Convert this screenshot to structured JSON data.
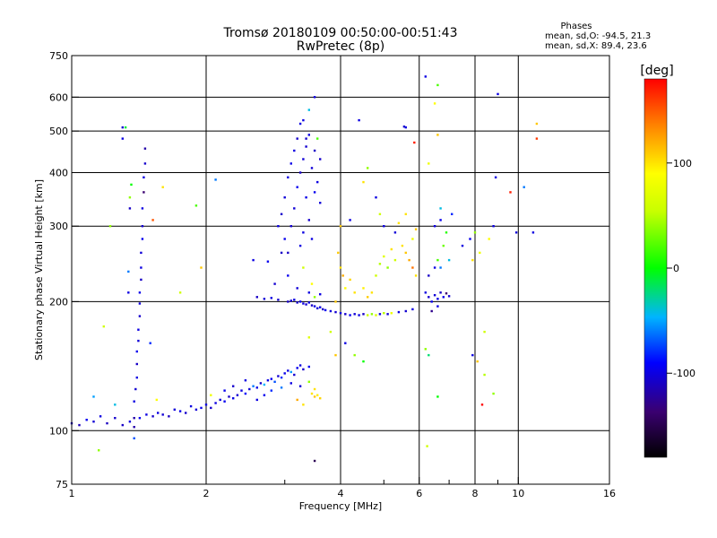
{
  "chart_data": {
    "type": "scatter",
    "title": "Tromsø 20180109 00:50:00-00:51:43",
    "subtitle": "RwPretec (8p)",
    "xlabel": "Frequency [MHz]",
    "ylabel": "Stationary phase Virtual Height [km]",
    "x_scale": "log",
    "y_scale": "log",
    "xlim": [
      1,
      16
    ],
    "ylim": [
      75,
      750
    ],
    "x_ticks": [
      1,
      2,
      4,
      6,
      8,
      10,
      16
    ],
    "x_tick_labels": [
      "1",
      "2",
      "4",
      "6",
      "8",
      "10",
      "16"
    ],
    "x_minor_ticks": [
      3,
      5,
      7,
      9
    ],
    "y_ticks": [
      75,
      100,
      200,
      300,
      400,
      500,
      600,
      750
    ],
    "y_tick_labels": [
      "75",
      "100",
      "200",
      "300",
      "400",
      "500",
      "600",
      "750"
    ],
    "grid": true,
    "info": {
      "heading": "Phases",
      "line1": "mean, sd,O: -94.5, 21.3",
      "line2": "mean, sd,X:  89.4, 23.6"
    },
    "colorbar": {
      "label": "[deg]",
      "range": [
        -180,
        180
      ],
      "ticks": [
        100,
        0,
        -100
      ],
      "tick_labels": [
        "100",
        "0",
        "-100"
      ]
    },
    "points": [
      [
        1.0,
        104,
        -110
      ],
      [
        1.04,
        103,
        -115
      ],
      [
        1.08,
        106,
        -95
      ],
      [
        1.12,
        105,
        -105
      ],
      [
        1.16,
        108,
        -100
      ],
      [
        1.2,
        104,
        -112
      ],
      [
        1.25,
        107,
        -108
      ],
      [
        1.3,
        103,
        -110
      ],
      [
        1.35,
        105,
        -102
      ],
      [
        1.38,
        102,
        -120
      ],
      [
        1.42,
        107,
        -95
      ],
      [
        1.47,
        109,
        -100
      ],
      [
        1.52,
        108,
        -108
      ],
      [
        1.56,
        110,
        -100
      ],
      [
        1.6,
        109,
        -105
      ],
      [
        1.65,
        108,
        -112
      ],
      [
        1.7,
        112,
        -103
      ],
      [
        1.75,
        111,
        -98
      ],
      [
        1.8,
        110,
        -108
      ],
      [
        1.85,
        114,
        -100
      ],
      [
        1.9,
        112,
        -104
      ],
      [
        1.95,
        113,
        -96
      ],
      [
        2.0,
        115,
        -100
      ],
      [
        2.05,
        113,
        -108
      ],
      [
        2.1,
        116,
        -100
      ],
      [
        2.15,
        118,
        -102
      ],
      [
        2.2,
        117,
        -95
      ],
      [
        2.25,
        120,
        -110
      ],
      [
        2.3,
        119,
        -98
      ],
      [
        2.35,
        121,
        -106
      ],
      [
        2.4,
        124,
        -100
      ],
      [
        2.45,
        122,
        -92
      ],
      [
        2.5,
        125,
        -104
      ],
      [
        2.55,
        127,
        -60
      ],
      [
        2.6,
        126,
        -98
      ],
      [
        2.65,
        129,
        -108
      ],
      [
        2.7,
        128,
        -45
      ],
      [
        2.75,
        131,
        -100
      ],
      [
        2.8,
        132,
        -94
      ],
      [
        2.85,
        130,
        -70
      ],
      [
        2.9,
        134,
        -105
      ],
      [
        2.95,
        133,
        -80
      ],
      [
        3.0,
        136,
        -98
      ],
      [
        3.05,
        138,
        -100
      ],
      [
        3.1,
        137,
        -50
      ],
      [
        3.15,
        135,
        -106
      ],
      [
        3.2,
        140,
        -96
      ],
      [
        3.25,
        142,
        -100
      ],
      [
        3.3,
        139,
        -108
      ],
      [
        3.4,
        141,
        -94
      ],
      [
        2.6,
        118,
        -100
      ],
      [
        2.7,
        121,
        -96
      ],
      [
        2.8,
        124,
        -80
      ],
      [
        2.95,
        126,
        -60
      ],
      [
        3.1,
        129,
        -100
      ],
      [
        3.25,
        127,
        -104
      ],
      [
        2.45,
        131,
        -100
      ],
      [
        2.3,
        127,
        -108
      ],
      [
        2.2,
        124,
        -96
      ],
      [
        2.05,
        121,
        80
      ],
      [
        3.45,
        122,
        100
      ],
      [
        3.5,
        120,
        110
      ],
      [
        3.55,
        121,
        95
      ],
      [
        3.6,
        119,
        105
      ],
      [
        3.5,
        125,
        100
      ],
      [
        3.4,
        130,
        40
      ],
      [
        3.3,
        115,
        100
      ],
      [
        3.2,
        118,
        120
      ],
      [
        1.38,
        107,
        -120
      ],
      [
        1.38,
        117,
        -100
      ],
      [
        1.39,
        125,
        -106
      ],
      [
        1.4,
        133,
        -100
      ],
      [
        1.4,
        143,
        -110
      ],
      [
        1.4,
        153,
        -96
      ],
      [
        1.41,
        162,
        -104
      ],
      [
        1.41,
        172,
        -100
      ],
      [
        1.42,
        185,
        -108
      ],
      [
        1.42,
        198,
        -102
      ],
      [
        1.42,
        210,
        -98
      ],
      [
        1.43,
        225,
        -110
      ],
      [
        1.43,
        240,
        -100
      ],
      [
        1.43,
        260,
        -104
      ],
      [
        1.44,
        280,
        -96
      ],
      [
        1.44,
        300,
        -106
      ],
      [
        1.44,
        330,
        -100
      ],
      [
        1.45,
        360,
        -140
      ],
      [
        1.45,
        390,
        -100
      ],
      [
        1.46,
        420,
        -108
      ],
      [
        1.46,
        455,
        -120
      ],
      [
        1.3,
        480,
        -100
      ],
      [
        1.3,
        510,
        -105
      ],
      [
        1.32,
        510,
        -10
      ],
      [
        1.35,
        330,
        -110
      ],
      [
        1.35,
        350,
        40
      ],
      [
        1.36,
        375,
        0
      ],
      [
        1.34,
        235,
        -60
      ],
      [
        1.34,
        210,
        -100
      ],
      [
        1.38,
        96,
        -70
      ],
      [
        1.5,
        160,
        -80
      ],
      [
        1.55,
        118,
        90
      ],
      [
        1.52,
        310,
        150
      ],
      [
        1.12,
        120,
        -50
      ],
      [
        1.18,
        175,
        60
      ],
      [
        1.22,
        300,
        40
      ],
      [
        1.25,
        115,
        -40
      ],
      [
        1.15,
        90,
        40
      ],
      [
        1.6,
        370,
        100
      ],
      [
        1.75,
        210,
        60
      ],
      [
        3.05,
        200,
        -110
      ],
      [
        3.1,
        201,
        -104
      ],
      [
        3.15,
        202,
        -100
      ],
      [
        3.2,
        199,
        -108
      ],
      [
        3.25,
        200,
        -96
      ],
      [
        3.3,
        198,
        -102
      ],
      [
        3.35,
        197,
        -106
      ],
      [
        3.4,
        199,
        -100
      ],
      [
        3.45,
        196,
        -110
      ],
      [
        3.5,
        195,
        -98
      ],
      [
        3.55,
        193,
        -104
      ],
      [
        3.6,
        194,
        -100
      ],
      [
        3.65,
        192,
        -108
      ],
      [
        3.7,
        191,
        -96
      ],
      [
        3.8,
        190,
        -102
      ],
      [
        3.9,
        189,
        -106
      ],
      [
        4.0,
        188,
        -100
      ],
      [
        4.1,
        187,
        -108
      ],
      [
        4.2,
        186,
        -96
      ],
      [
        4.3,
        187,
        -104
      ],
      [
        4.4,
        186,
        -100
      ],
      [
        4.5,
        187,
        -110
      ],
      [
        4.6,
        186,
        60
      ],
      [
        4.7,
        187,
        40
      ],
      [
        4.8,
        186,
        70
      ],
      [
        4.9,
        187,
        -100
      ],
      [
        5.0,
        188,
        50
      ],
      [
        5.1,
        187,
        -104
      ],
      [
        5.2,
        188,
        80
      ],
      [
        5.4,
        189,
        -100
      ],
      [
        5.6,
        190,
        -106
      ],
      [
        5.8,
        192,
        -100
      ],
      [
        2.6,
        205,
        -110
      ],
      [
        2.7,
        203,
        -104
      ],
      [
        2.8,
        204,
        -100
      ],
      [
        2.9,
        202,
        -108
      ],
      [
        2.55,
        250,
        -100
      ],
      [
        2.75,
        248,
        -96
      ],
      [
        2.85,
        220,
        -106
      ],
      [
        2.9,
        300,
        -100
      ],
      [
        2.95,
        320,
        -108
      ],
      [
        3.0,
        280,
        -96
      ],
      [
        3.0,
        350,
        -104
      ],
      [
        3.05,
        390,
        -100
      ],
      [
        3.05,
        260,
        -110
      ],
      [
        3.1,
        420,
        -98
      ],
      [
        3.1,
        300,
        -106
      ],
      [
        3.15,
        450,
        -100
      ],
      [
        3.15,
        330,
        -104
      ],
      [
        3.2,
        480,
        -108
      ],
      [
        3.2,
        370,
        -96
      ],
      [
        3.25,
        270,
        -100
      ],
      [
        3.25,
        400,
        -110
      ],
      [
        3.3,
        430,
        -104
      ],
      [
        3.3,
        290,
        -100
      ],
      [
        3.35,
        460,
        -106
      ],
      [
        3.35,
        350,
        -98
      ],
      [
        3.4,
        490,
        -100
      ],
      [
        3.4,
        310,
        -108
      ],
      [
        3.45,
        410,
        -104
      ],
      [
        3.45,
        280,
        -100
      ],
      [
        3.5,
        450,
        -110
      ],
      [
        3.5,
        360,
        -96
      ],
      [
        3.55,
        480,
        20
      ],
      [
        3.55,
        380,
        -100
      ],
      [
        3.6,
        340,
        -104
      ],
      [
        3.6,
        430,
        -108
      ],
      [
        3.5,
        600,
        -100
      ],
      [
        3.4,
        560,
        -40
      ],
      [
        3.3,
        530,
        -100
      ],
      [
        2.95,
        260,
        -110
      ],
      [
        3.05,
        230,
        -96
      ],
      [
        3.2,
        215,
        -104
      ],
      [
        3.4,
        210,
        -100
      ],
      [
        3.5,
        205,
        40
      ],
      [
        3.6,
        208,
        -100
      ],
      [
        3.3,
        240,
        60
      ],
      [
        3.45,
        220,
        90
      ],
      [
        3.35,
        480,
        -108
      ],
      [
        3.25,
        520,
        -100
      ],
      [
        3.95,
        260,
        110
      ],
      [
        4.0,
        240,
        100
      ],
      [
        4.05,
        230,
        120
      ],
      [
        4.1,
        215,
        90
      ],
      [
        4.2,
        225,
        105
      ],
      [
        4.3,
        210,
        100
      ],
      [
        3.9,
        200,
        110
      ],
      [
        4.5,
        215,
        95
      ],
      [
        4.6,
        205,
        108
      ],
      [
        4.7,
        210,
        100
      ],
      [
        4.8,
        230,
        60
      ],
      [
        4.9,
        245,
        50
      ],
      [
        5.0,
        255,
        70
      ],
      [
        5.1,
        240,
        40
      ],
      [
        5.2,
        265,
        100
      ],
      [
        5.3,
        250,
        60
      ],
      [
        5.5,
        270,
        100
      ],
      [
        5.6,
        260,
        110
      ],
      [
        5.7,
        250,
        120
      ],
      [
        5.8,
        240,
        140
      ],
      [
        5.9,
        230,
        100
      ],
      [
        4.0,
        300,
        110
      ],
      [
        4.2,
        310,
        -100
      ],
      [
        5.0,
        300,
        -100
      ],
      [
        5.3,
        290,
        -104
      ],
      [
        5.4,
        305,
        100
      ],
      [
        5.8,
        280,
        80
      ],
      [
        5.9,
        295,
        110
      ],
      [
        5.6,
        320,
        100
      ],
      [
        5.6,
        510,
        -100
      ],
      [
        5.55,
        512,
        -106
      ],
      [
        5.85,
        470,
        170
      ],
      [
        6.2,
        210,
        -100
      ],
      [
        6.3,
        205,
        -108
      ],
      [
        6.4,
        200,
        -96
      ],
      [
        6.5,
        207,
        -104
      ],
      [
        6.6,
        203,
        -100
      ],
      [
        6.7,
        210,
        -110
      ],
      [
        6.8,
        205,
        -98
      ],
      [
        6.9,
        209,
        -140
      ],
      [
        7.0,
        206,
        -106
      ],
      [
        6.4,
        190,
        -130
      ],
      [
        6.6,
        195,
        -100
      ],
      [
        6.3,
        230,
        -110
      ],
      [
        6.5,
        240,
        -100
      ],
      [
        6.6,
        250,
        20
      ],
      [
        6.7,
        240,
        -60
      ],
      [
        6.8,
        270,
        30
      ],
      [
        6.9,
        290,
        10
      ],
      [
        7.0,
        250,
        -40
      ],
      [
        6.5,
        300,
        -100
      ],
      [
        6.7,
        310,
        -96
      ],
      [
        7.1,
        320,
        -80
      ],
      [
        6.2,
        670,
        -100
      ],
      [
        6.6,
        640,
        20
      ],
      [
        6.5,
        580,
        90
      ],
      [
        6.6,
        490,
        110
      ],
      [
        6.3,
        420,
        80
      ],
      [
        6.7,
        330,
        -40
      ],
      [
        6.2,
        155,
        40
      ],
      [
        6.3,
        150,
        -20
      ],
      [
        6.6,
        120,
        0
      ],
      [
        6.25,
        92,
        60
      ],
      [
        7.5,
        270,
        -100
      ],
      [
        7.8,
        280,
        -96
      ],
      [
        8.0,
        290,
        40
      ],
      [
        7.9,
        250,
        100
      ],
      [
        8.2,
        260,
        80
      ],
      [
        8.6,
        280,
        90
      ],
      [
        8.8,
        300,
        -100
      ],
      [
        9.0,
        610,
        -100
      ],
      [
        8.4,
        170,
        60
      ],
      [
        8.4,
        135,
        50
      ],
      [
        8.9,
        390,
        -100
      ],
      [
        9.6,
        360,
        170
      ],
      [
        9.9,
        290,
        -104
      ],
      [
        10.3,
        370,
        -60
      ],
      [
        10.8,
        290,
        -100
      ],
      [
        11.0,
        520,
        110
      ],
      [
        11.0,
        480,
        160
      ],
      [
        7.9,
        150,
        -100
      ],
      [
        8.1,
        145,
        110
      ],
      [
        8.3,
        115,
        180
      ],
      [
        8.8,
        122,
        40
      ],
      [
        4.4,
        530,
        -100
      ],
      [
        4.6,
        410,
        40
      ],
      [
        4.5,
        380,
        100
      ],
      [
        4.8,
        350,
        -100
      ],
      [
        4.9,
        320,
        60
      ],
      [
        4.1,
        160,
        -100
      ],
      [
        4.3,
        150,
        40
      ],
      [
        4.5,
        145,
        0
      ],
      [
        3.9,
        150,
        110
      ],
      [
        3.8,
        170,
        60
      ],
      [
        3.4,
        165,
        70
      ],
      [
        3.5,
        85,
        -150
      ],
      [
        2.1,
        385,
        -60
      ],
      [
        1.9,
        335,
        20
      ],
      [
        1.95,
        240,
        110
      ]
    ]
  }
}
